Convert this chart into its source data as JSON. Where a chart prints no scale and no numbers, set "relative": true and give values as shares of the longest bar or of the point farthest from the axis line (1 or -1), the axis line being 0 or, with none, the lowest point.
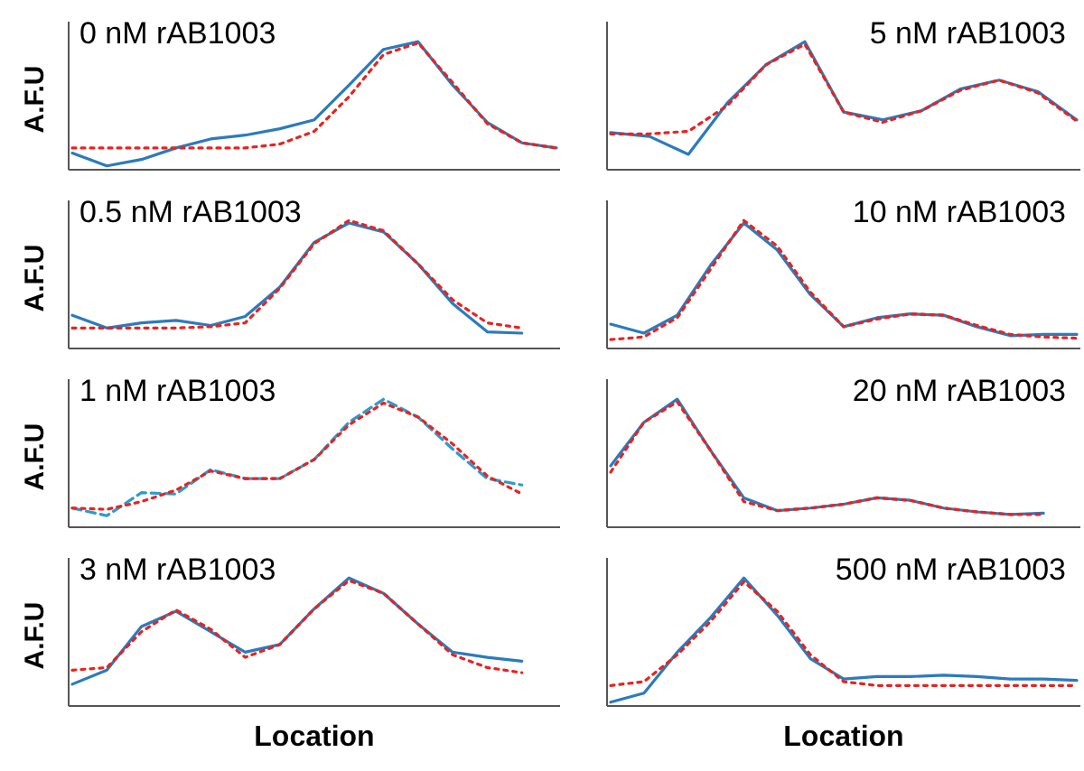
{
  "chart_data": [
    {
      "type": "line",
      "title": "0 nM rAB1003",
      "ylabel": "A.F.U",
      "relative": true,
      "categories": [
        null,
        null,
        null,
        null,
        null,
        null,
        null,
        null,
        null,
        null,
        null,
        null,
        null,
        null,
        null
      ],
      "series": [
        {
          "color": "#2b7bbd",
          "line_style": "solid",
          "values": [
            0.13,
            0.03,
            0.08,
            0.17,
            0.24,
            0.27,
            0.32,
            0.39,
            0.66,
            0.94,
            1,
            0.66,
            0.37,
            0.21,
            0.17
          ]
        },
        {
          "color": "#e8231f",
          "line_style": "dotted",
          "values": [
            0.17,
            0.17,
            0.17,
            0.17,
            0.17,
            0.17,
            0.2,
            0.3,
            0.57,
            0.9,
            0.99,
            0.68,
            0.36,
            0.21,
            0.17
          ]
        }
      ]
    },
    {
      "type": "line",
      "title": "5 nM rAB1003",
      "relative": true,
      "categories": [
        null,
        null,
        null,
        null,
        null,
        null,
        null,
        null,
        null,
        null,
        null,
        null,
        null
      ],
      "series": [
        {
          "color": "#2b7bbd",
          "line_style": "solid",
          "values": [
            0.29,
            0.26,
            0.12,
            0.52,
            0.82,
            1,
            0.45,
            0.39,
            0.46,
            0.63,
            0.7,
            0.61,
            0.39
          ]
        },
        {
          "color": "#e8231f",
          "line_style": "dotted",
          "values": [
            0.28,
            0.28,
            0.3,
            0.5,
            0.82,
            0.98,
            0.45,
            0.37,
            0.46,
            0.62,
            0.7,
            0.6,
            0.38
          ]
        }
      ]
    },
    {
      "type": "line",
      "title": "0.5 nM rAB1003",
      "ylabel": "A.F.U",
      "relative": true,
      "categories": [
        null,
        null,
        null,
        null,
        null,
        null,
        null,
        null,
        null,
        null,
        null,
        null,
        null,
        null,
        null
      ],
      "series": [
        {
          "color": "#2b7bbd",
          "line_style": "solid",
          "values": [
            0.26,
            0.16,
            0.2,
            0.22,
            0.18,
            0.25,
            0.48,
            0.83,
            0.98,
            0.91,
            0.66,
            0.35,
            0.13,
            0.12,
            null
          ]
        },
        {
          "color": "#e8231f",
          "line_style": "dotted",
          "values": [
            0.16,
            0.16,
            0.16,
            0.16,
            0.17,
            0.2,
            0.47,
            0.82,
            1,
            0.92,
            0.66,
            0.38,
            0.2,
            0.16,
            null
          ]
        }
      ]
    },
    {
      "type": "line",
      "title": "10 nM rAB1003",
      "relative": true,
      "categories": [
        null,
        null,
        null,
        null,
        null,
        null,
        null,
        null,
        null,
        null,
        null,
        null,
        null,
        null,
        null
      ],
      "series": [
        {
          "color": "#2b7bbd",
          "line_style": "solid",
          "values": [
            0.19,
            0.12,
            0.26,
            0.65,
            0.98,
            0.77,
            0.42,
            0.17,
            0.24,
            0.27,
            0.26,
            0.17,
            0.1,
            0.11,
            0.11
          ]
        },
        {
          "color": "#e8231f",
          "line_style": "dotted",
          "values": [
            0.07,
            0.09,
            0.24,
            0.62,
            1,
            0.8,
            0.44,
            0.17,
            0.23,
            0.27,
            0.26,
            0.18,
            0.11,
            0.09,
            0.08
          ]
        }
      ]
    },
    {
      "type": "line",
      "title": "1 nM rAB1003",
      "ylabel": "A.F.U",
      "relative": true,
      "categories": [
        null,
        null,
        null,
        null,
        null,
        null,
        null,
        null,
        null,
        null,
        null,
        null,
        null,
        null,
        null
      ],
      "series": [
        {
          "color": "#2b9bd0",
          "line_style": "dashed",
          "values": [
            0.15,
            0.09,
            0.27,
            0.26,
            0.45,
            0.38,
            0.38,
            0.53,
            0.82,
            1,
            0.86,
            0.61,
            0.38,
            0.33,
            null
          ]
        },
        {
          "color": "#e8231f",
          "line_style": "dotted",
          "values": [
            0.15,
            0.14,
            0.2,
            0.29,
            0.44,
            0.38,
            0.38,
            0.53,
            0.8,
            0.97,
            0.86,
            0.65,
            0.4,
            0.26,
            null
          ]
        }
      ]
    },
    {
      "type": "line",
      "title": "20 nM rAB1003",
      "relative": true,
      "categories": [
        null,
        null,
        null,
        null,
        null,
        null,
        null,
        null,
        null,
        null,
        null,
        null,
        null,
        null,
        null
      ],
      "series": [
        {
          "color": "#2b7bbd",
          "line_style": "solid",
          "values": [
            0.48,
            0.82,
            1,
            0.6,
            0.23,
            0.13,
            0.15,
            0.18,
            0.23,
            0.21,
            0.15,
            0.12,
            0.1,
            0.11,
            null
          ]
        },
        {
          "color": "#e8231f",
          "line_style": "dotted",
          "values": [
            0.43,
            0.82,
            0.98,
            0.6,
            0.2,
            0.13,
            0.15,
            0.18,
            0.23,
            0.21,
            0.15,
            0.12,
            0.1,
            0.1,
            null
          ]
        }
      ]
    },
    {
      "type": "line",
      "title": "3 nM rAB1003",
      "ylabel": "A.F.U",
      "xlabel": "Location",
      "relative": true,
      "categories": [
        null,
        null,
        null,
        null,
        null,
        null,
        null,
        null,
        null,
        null,
        null,
        null,
        null,
        null,
        null
      ],
      "series": [
        {
          "color": "#2b7bbd",
          "line_style": "solid",
          "values": [
            0.17,
            0.28,
            0.62,
            0.74,
            0.58,
            0.42,
            0.48,
            0.76,
            1,
            0.88,
            0.64,
            0.42,
            0.38,
            0.35,
            null
          ]
        },
        {
          "color": "#e8231f",
          "line_style": "dotted",
          "values": [
            0.28,
            0.3,
            0.58,
            0.75,
            0.6,
            0.38,
            0.48,
            0.76,
            0.98,
            0.88,
            0.64,
            0.4,
            0.3,
            0.26,
            null
          ]
        }
      ]
    },
    {
      "type": "line",
      "title": "500 nM rAB1003",
      "xlabel": "Location",
      "relative": true,
      "categories": [
        null,
        null,
        null,
        null,
        null,
        null,
        null,
        null,
        null,
        null,
        null,
        null,
        null,
        null,
        null
      ],
      "series": [
        {
          "color": "#2b7bbd",
          "line_style": "solid",
          "values": [
            0.03,
            0.1,
            0.42,
            0.69,
            1,
            0.71,
            0.37,
            0.21,
            0.23,
            0.23,
            0.24,
            0.23,
            0.21,
            0.21,
            0.2
          ]
        },
        {
          "color": "#e8231f",
          "line_style": "dotted",
          "values": [
            0.16,
            0.19,
            0.4,
            0.66,
            0.97,
            0.74,
            0.4,
            0.19,
            0.16,
            0.16,
            0.16,
            0.16,
            0.16,
            0.16,
            0.16
          ]
        }
      ]
    }
  ]
}
